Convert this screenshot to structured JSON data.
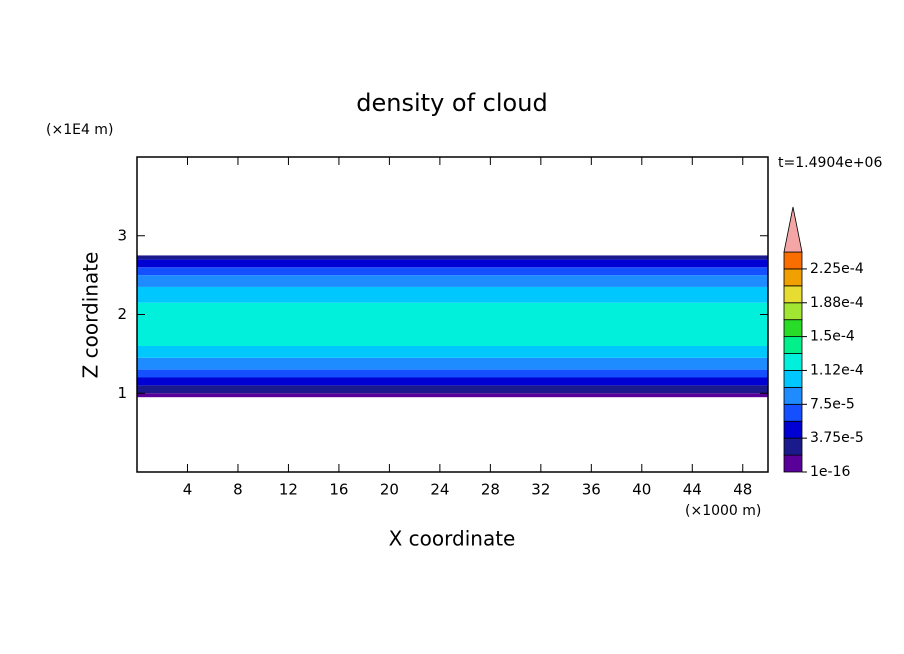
{
  "chart_data": {
    "type": "contour",
    "title": "density of cloud",
    "x_label": "X coordinate",
    "y_label": "Z coordinate",
    "x_unit": "(×1000 m)",
    "y_unit": "(×1E4 m)",
    "annotation": "t=1.4904e+06",
    "xlim": [
      0,
      50
    ],
    "ylim": [
      0,
      4
    ],
    "xticks": [
      4,
      8,
      12,
      16,
      20,
      24,
      28,
      32,
      36,
      40,
      44,
      48
    ],
    "yticks": [
      1,
      2,
      3
    ],
    "field": {
      "z_edges": [
        0.95,
        1.0,
        1.1,
        1.2,
        1.3,
        1.45,
        1.6,
        2.15,
        2.35,
        2.5,
        2.6,
        2.7,
        2.75
      ],
      "values": [
        1e-06,
        3e-05,
        5e-05,
        7e-05,
        9e-05,
        0.000105,
        0.00012,
        0.000105,
        9e-05,
        7e-05,
        5e-05,
        3e-05
      ]
    },
    "colorbar": {
      "levels": [
        1e-16,
        1.875e-05,
        3.75e-05,
        5.625e-05,
        7.5e-05,
        9.375e-05,
        0.0001125,
        0.00013125,
        0.00015,
        0.00016875,
        0.0001875,
        0.00020625,
        0.000225,
        0.00024375
      ],
      "colors": [
        "#5a009a",
        "#1a1a8c",
        "#0000d2",
        "#1450ff",
        "#1e8cff",
        "#00c8ff",
        "#00f0dc",
        "#00f08c",
        "#28dc28",
        "#a0e632",
        "#e6dc32",
        "#f0a000",
        "#fa6e00",
        "#f01e1e"
      ],
      "extend_color": "#f4a6a6",
      "ticks": [
        {
          "value": 1e-16,
          "label": "1e-16"
        },
        {
          "value": 3.75e-05,
          "label": "3.75e-5"
        },
        {
          "value": 7.5e-05,
          "label": "7.5e-5"
        },
        {
          "value": 0.0001125,
          "label": "1.12e-4"
        },
        {
          "value": 0.00015,
          "label": "1.5e-4"
        },
        {
          "value": 0.0001875,
          "label": "1.88e-4"
        },
        {
          "value": 0.000225,
          "label": "2.25e-4"
        }
      ]
    }
  }
}
